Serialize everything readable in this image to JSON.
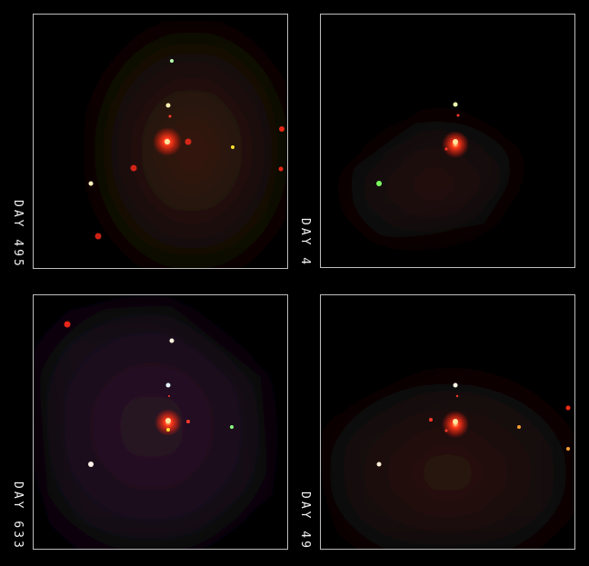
{
  "panels": {
    "top_left": {
      "label": "DAY 495"
    },
    "top_right": {
      "label": "DAY 4"
    },
    "bottom_left": {
      "label": "DAY 633"
    },
    "bottom_right": {
      "label": "DAY 49"
    }
  },
  "colors": {
    "frame": "#bdbdbd",
    "central_source": "#ff2a1a",
    "label": "#f2f2f2"
  }
}
